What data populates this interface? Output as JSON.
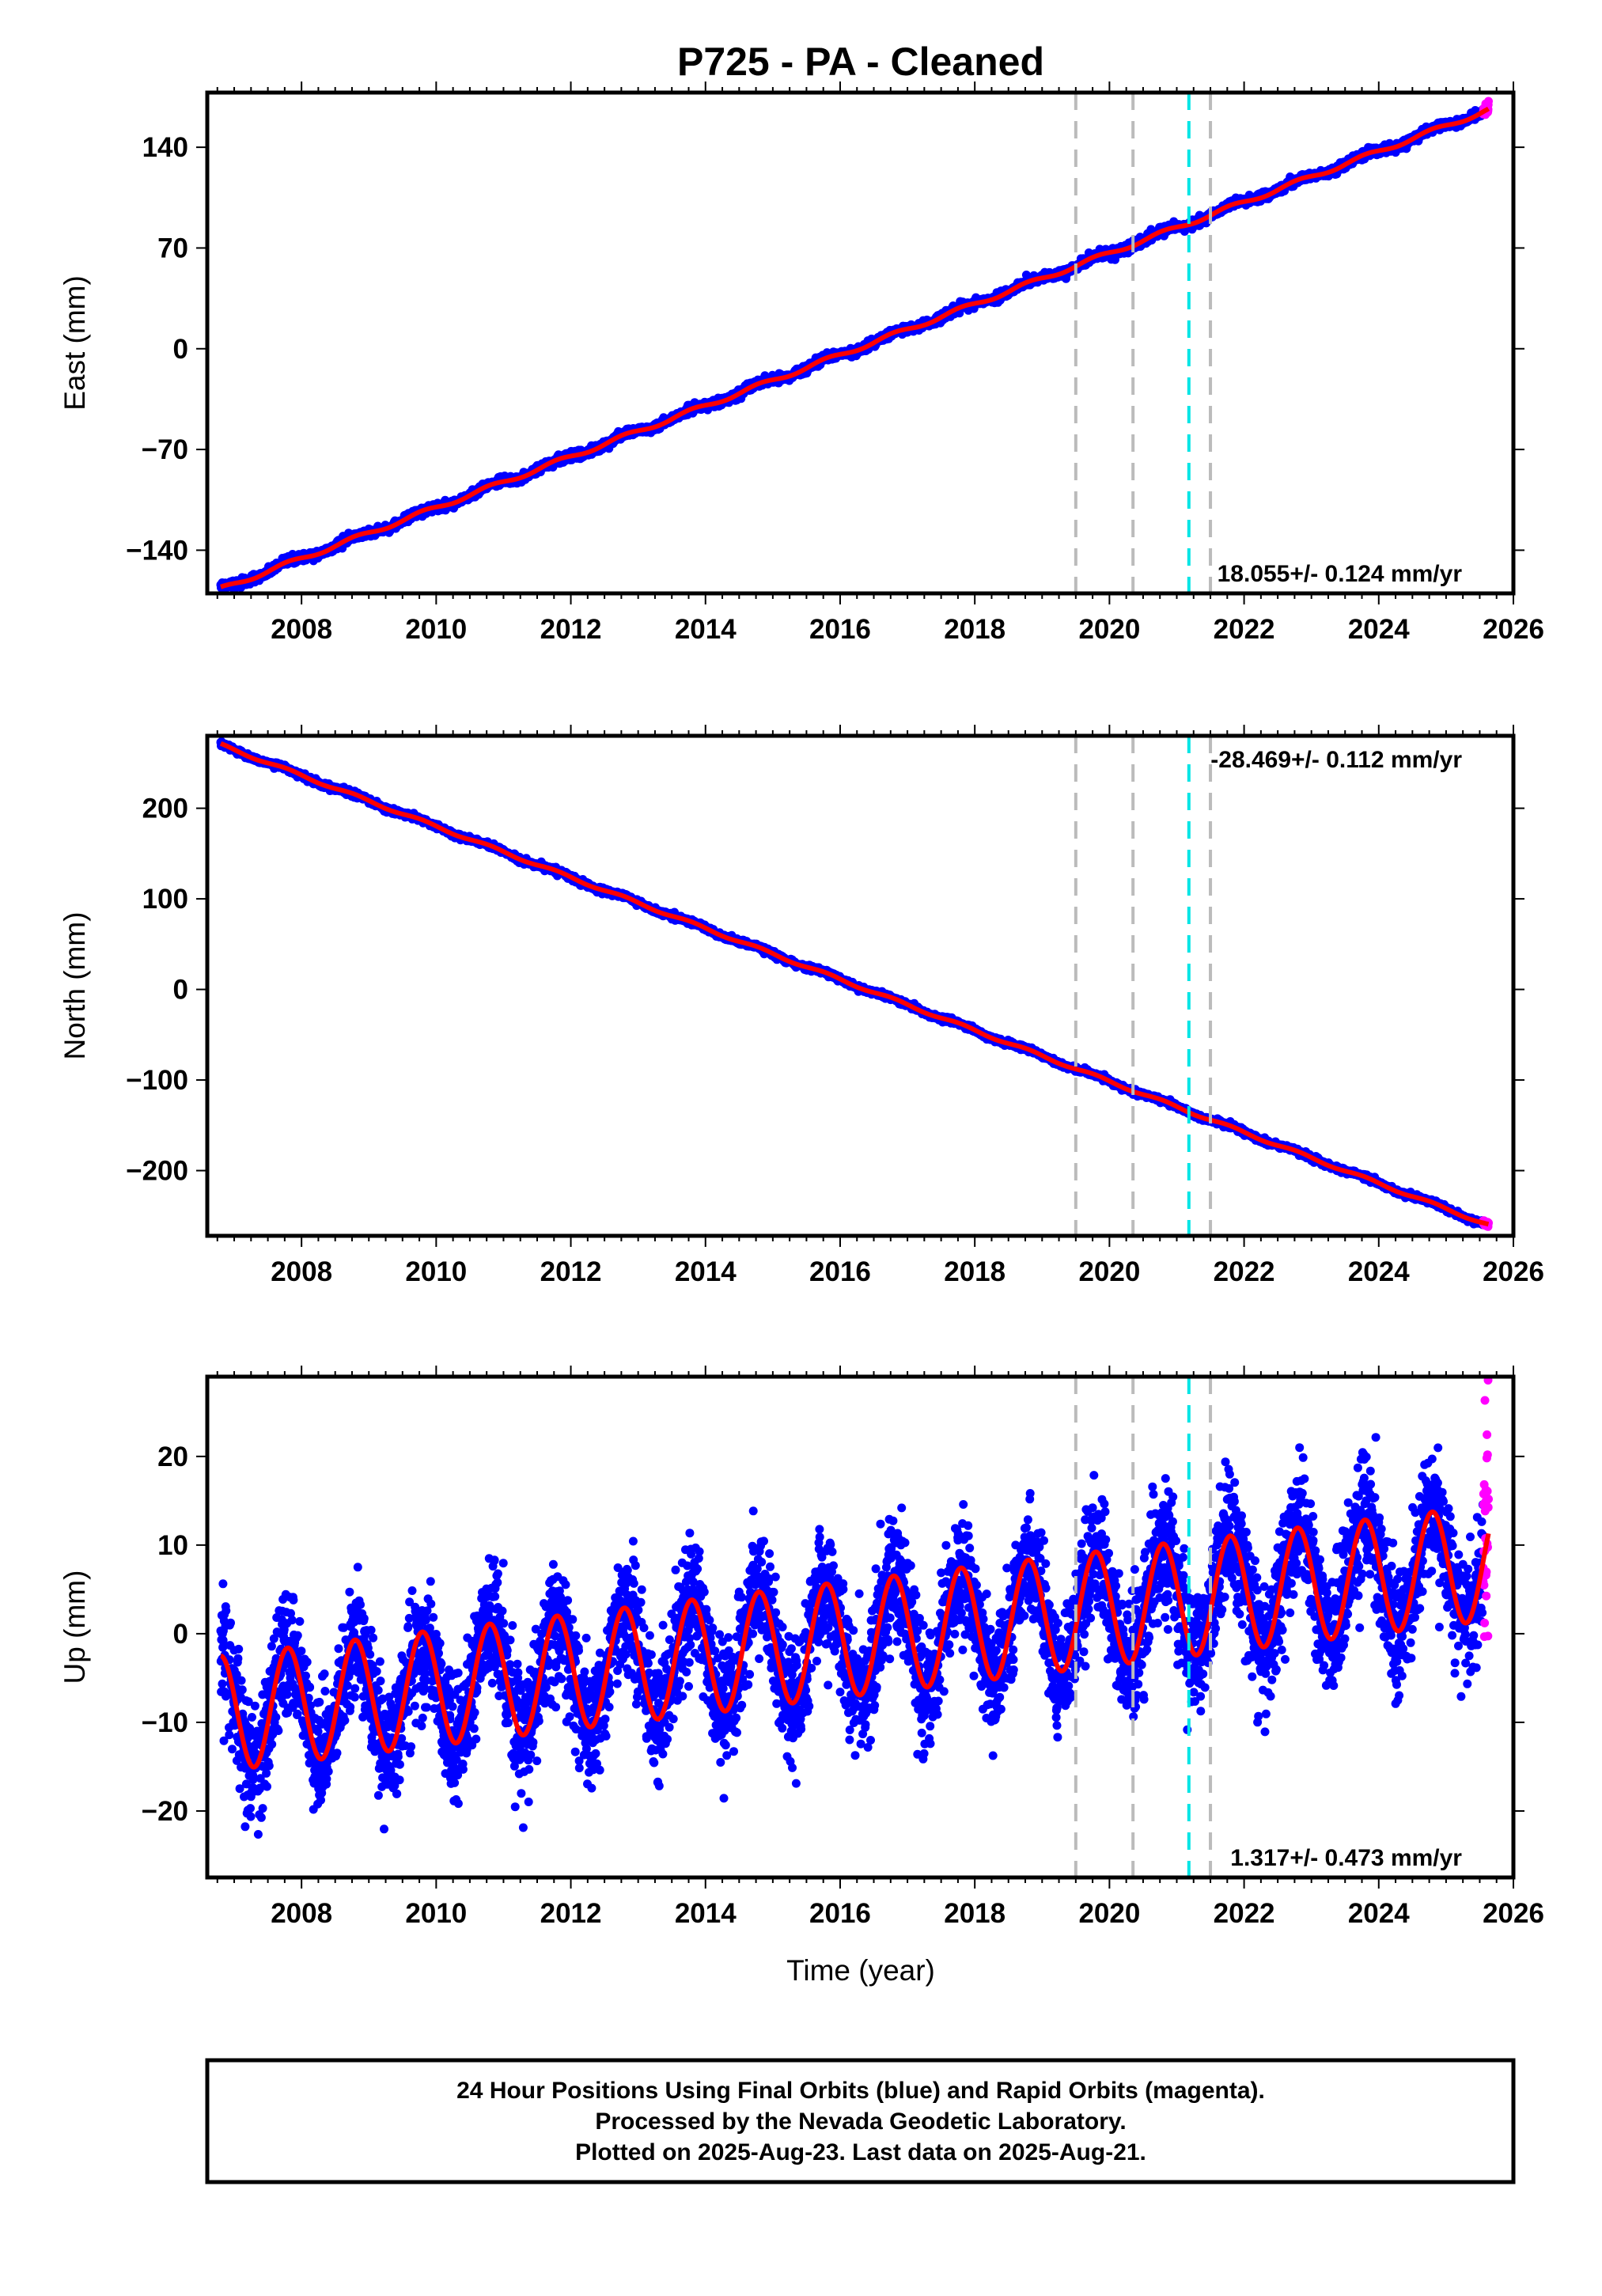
{
  "title": "P725  - PA - Cleaned",
  "colors": {
    "final_orbits": "#0000ff",
    "rapid_orbits": "#ff00ff",
    "model": "#ff0000",
    "event_gray": "#bbbbbb",
    "event_cyan": "#00e5e5",
    "frame": "#000000"
  },
  "chart_data": [
    {
      "type": "scatter",
      "component": "east",
      "ylabel": "East (mm)",
      "xlim": [
        2006.6,
        2026.0
      ],
      "ylim": [
        -170,
        178
      ],
      "yticks": [
        140,
        70,
        0,
        -70,
        -140
      ],
      "xticks": [
        2008,
        2010,
        2012,
        2014,
        2016,
        2018,
        2020,
        2022,
        2024,
        2026
      ],
      "rate_label": "18.055+/- 0.124 mm/yr",
      "rate_mm_per_yr": 18.055,
      "start": [
        2006.8,
        -167
      ],
      "end": [
        2025.63,
        166
      ],
      "seasonal_amplitude_mm": 1.5,
      "noise_mm": 1.5,
      "event_lines_gray": [
        2019.5,
        2020.35,
        2021.5
      ],
      "event_lines_cyan": [
        2021.18
      ],
      "series": [
        {
          "name": "Final Orbits (blue)",
          "x_range": [
            2006.8,
            2025.55
          ]
        },
        {
          "name": "Rapid Orbits (magenta)",
          "x_range": [
            2025.55,
            2025.63
          ]
        }
      ]
    },
    {
      "type": "scatter",
      "component": "north",
      "ylabel": "North (mm)",
      "xlim": [
        2006.6,
        2026.0
      ],
      "ylim": [
        -272,
        280
      ],
      "yticks": [
        200,
        100,
        0,
        -100,
        -200
      ],
      "xticks": [
        2008,
        2010,
        2012,
        2014,
        2016,
        2018,
        2020,
        2022,
        2024,
        2026
      ],
      "rate_label": "-28.469+/- 0.112 mm/yr",
      "rate_mm_per_yr": -28.469,
      "start": [
        2006.8,
        270
      ],
      "end": [
        2025.63,
        -260
      ],
      "seasonal_amplitude_mm": 1.5,
      "noise_mm": 1.5,
      "event_lines_gray": [
        2019.5,
        2020.35,
        2021.5
      ],
      "event_lines_cyan": [
        2021.18
      ],
      "series": [
        {
          "name": "Final Orbits (blue)",
          "x_range": [
            2006.8,
            2025.55
          ]
        },
        {
          "name": "Rapid Orbits (magenta)",
          "x_range": [
            2025.55,
            2025.63
          ]
        }
      ]
    },
    {
      "type": "scatter",
      "component": "up",
      "ylabel": "Up (mm)",
      "xlabel": "Time (year)",
      "xlim": [
        2006.6,
        2026.0
      ],
      "ylim": [
        -27.5,
        29
      ],
      "yticks": [
        20,
        10,
        0,
        -10,
        -20
      ],
      "xticks": [
        2008,
        2010,
        2012,
        2014,
        2016,
        2018,
        2020,
        2022,
        2024,
        2026
      ],
      "rate_label": "1.317+/- 0.473 mm/yr",
      "rate_mm_per_yr": 1.317,
      "start": [
        2006.8,
        -9
      ],
      "end": [
        2025.63,
        8
      ],
      "seasonal_amplitude_mm": 6.5,
      "noise_mm": 3.4,
      "event_lines_gray": [
        2019.5,
        2020.35,
        2021.5
      ],
      "event_lines_cyan": [
        2021.18
      ],
      "series": [
        {
          "name": "Final Orbits (blue)",
          "x_range": [
            2006.8,
            2025.55
          ]
        },
        {
          "name": "Rapid Orbits (magenta)",
          "x_range": [
            2025.55,
            2025.63
          ]
        }
      ]
    }
  ],
  "footer": {
    "line1": "24 Hour Positions Using Final Orbits (blue) and Rapid Orbits (magenta).",
    "line2": "Processed by the Nevada Geodetic Laboratory.",
    "line3": "Plotted on 2025-Aug-23. Last data on 2025-Aug-21."
  }
}
